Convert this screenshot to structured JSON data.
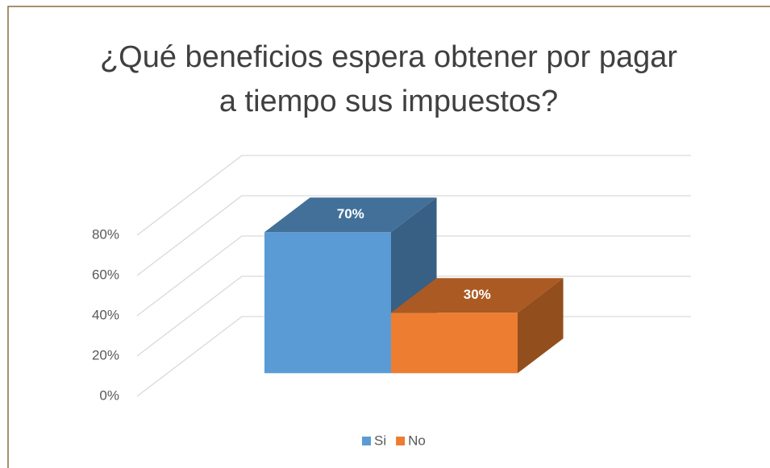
{
  "chart_data": {
    "type": "bar3d",
    "title": "¿Qué beneficios espera obtener por pagar a tiempo sus impuestos?",
    "series": [
      {
        "name": "Si",
        "color": "#5b9bd5",
        "values": [
          70
        ],
        "value_labels": [
          "70%"
        ]
      },
      {
        "name": "No",
        "color": "#ed7d31",
        "values": [
          30
        ],
        "value_labels": [
          "30%"
        ]
      }
    ],
    "ylim": [
      0,
      80
    ],
    "yticks": [
      {
        "value": 0,
        "label": "0%"
      },
      {
        "value": 20,
        "label": "20%"
      },
      {
        "value": 40,
        "label": "40%"
      },
      {
        "value": 60,
        "label": "60%"
      },
      {
        "value": 80,
        "label": "80%"
      }
    ],
    "grid": true,
    "legend": "bottom"
  }
}
